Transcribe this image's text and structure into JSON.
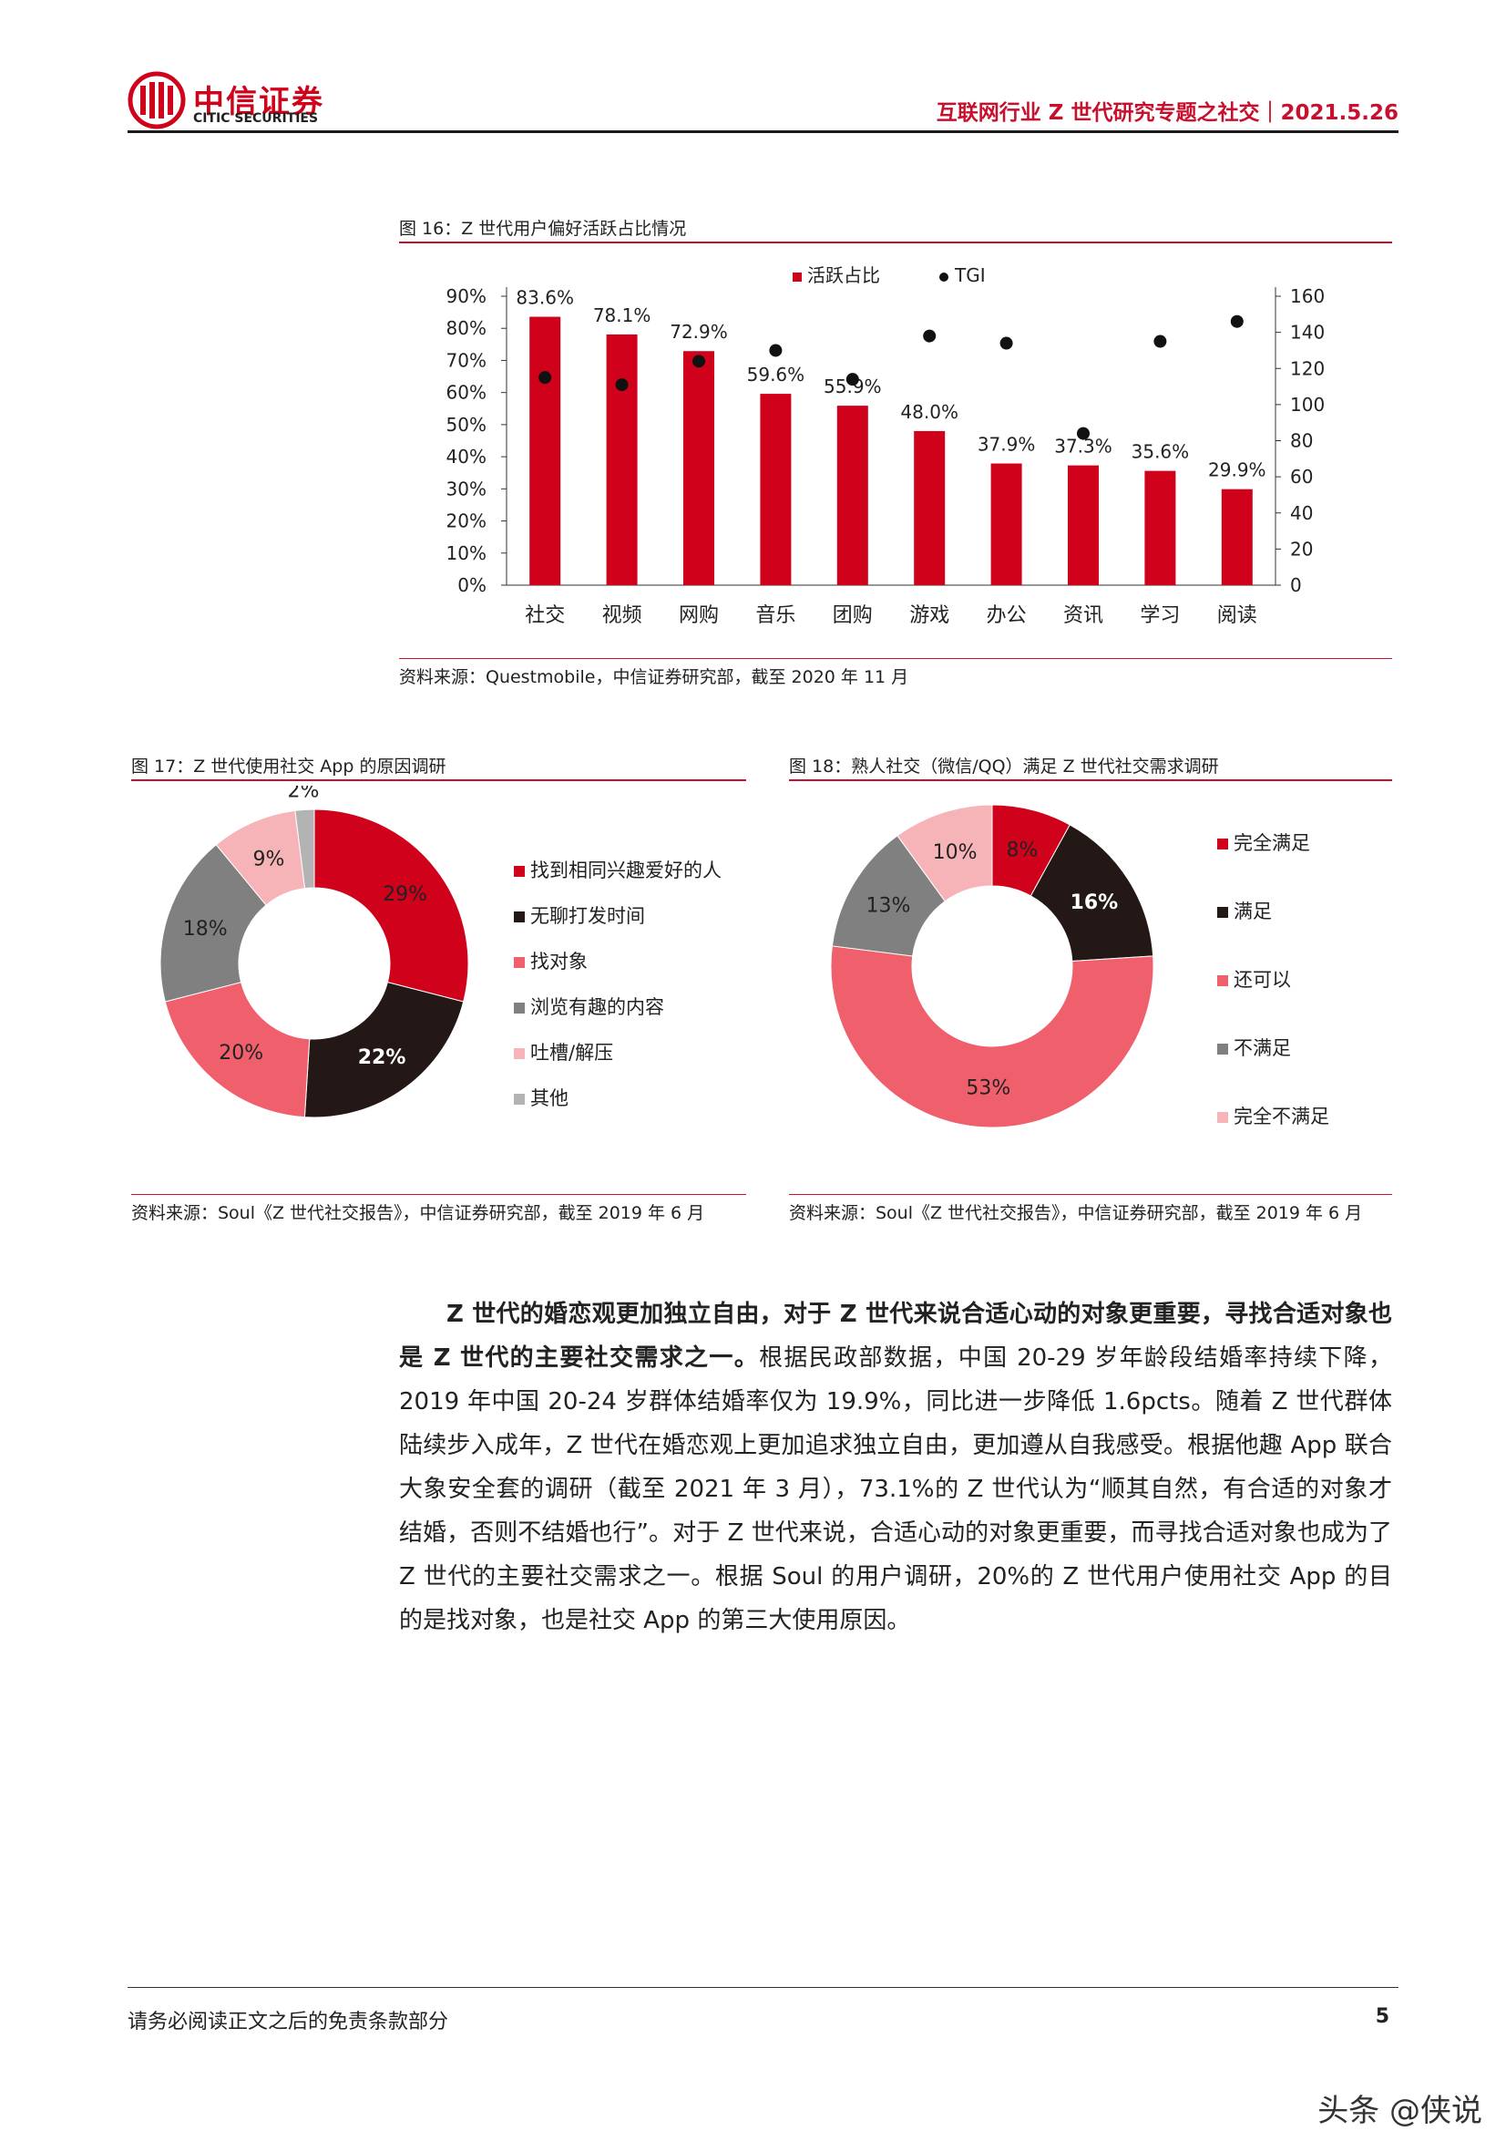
{
  "header": {
    "logo_cn": "中信证券",
    "logo_en": "CITIC SECURITIES",
    "title": "互联网行业 Z 世代研究专题之社交｜2021.5.26"
  },
  "colors": {
    "brand_red": "#c8102e",
    "bar_red": "#d0021b",
    "dark": "#231815",
    "pink": "#f0606c",
    "grey": "#808080",
    "light_pink": "#f7b4b8",
    "light_grey": "#b3b3b3"
  },
  "fig16": {
    "caption": "图 16：Z 世代用户偏好活跃占比情况",
    "source": "资料来源：Questmobile，中信证券研究部，截至 2020 年 11 月"
  },
  "fig17": {
    "caption": "图 17：Z 世代使用社交 App 的原因调研",
    "source": "资料来源：Soul《Z 世代社交报告》，中信证券研究部，截至 2019 年 6 月"
  },
  "fig18": {
    "caption": "图 18：熟人社交（微信/QQ）满足 Z 世代社交需求调研",
    "source": "资料来源：Soul《Z 世代社交报告》，中信证券研究部，截至 2019 年 6 月"
  },
  "chart_data": [
    {
      "type": "bar",
      "categories": [
        "社交",
        "视频",
        "网购",
        "音乐",
        "团购",
        "游戏",
        "办公",
        "资讯",
        "学习",
        "阅读"
      ],
      "series": [
        {
          "name": "活跃占比",
          "type": "bar",
          "values": [
            83.6,
            78.1,
            72.9,
            59.6,
            55.9,
            48.0,
            37.9,
            37.3,
            35.6,
            29.9
          ],
          "labels": [
            "83.6%",
            "78.1%",
            "72.9%",
            "59.6%",
            "55.9%",
            "48.0%",
            "37.9%",
            "37.3%",
            "35.6%",
            "29.9%"
          ]
        },
        {
          "name": "TGI",
          "type": "scatter",
          "axis": "right",
          "values": [
            115,
            111,
            124,
            130,
            114,
            138,
            134,
            84,
            135,
            146
          ]
        }
      ],
      "y_left": {
        "ticks": [
          "90%",
          "80%",
          "70%",
          "60%",
          "50%",
          "40%",
          "30%",
          "20%",
          "10%",
          "0%"
        ],
        "lim": [
          0,
          90
        ]
      },
      "y_right": {
        "ticks": [
          "160",
          "140",
          "120",
          "100",
          "80",
          "60",
          "40",
          "20",
          "0"
        ],
        "lim": [
          0,
          160
        ]
      },
      "legend_position": "top-center"
    },
    {
      "type": "pie",
      "donut": true,
      "slices": [
        {
          "label": "找到相同兴趣爱好的人",
          "value": 29,
          "text": "29%",
          "color": "#d0021b"
        },
        {
          "label": "无聊打发时间",
          "value": 22,
          "text": "22%",
          "color": "#231815"
        },
        {
          "label": "找对象",
          "value": 20,
          "text": "20%",
          "color": "#f0606c"
        },
        {
          "label": "浏览有趣的内容",
          "value": 18,
          "text": "18%",
          "color": "#808080"
        },
        {
          "label": "吐槽/解压",
          "value": 9,
          "text": "9%",
          "color": "#f7b4b8"
        },
        {
          "label": "其他",
          "value": 2,
          "text": "2%",
          "color": "#b3b3b3"
        }
      ],
      "legend_position": "right"
    },
    {
      "type": "pie",
      "donut": true,
      "slices": [
        {
          "label": "完全满足",
          "value": 8,
          "text": "8%",
          "color": "#d0021b"
        },
        {
          "label": "满足",
          "value": 16,
          "text": "16%",
          "color": "#231815"
        },
        {
          "label": "还可以",
          "value": 53,
          "text": "53%",
          "color": "#f0606c"
        },
        {
          "label": "不满足",
          "value": 13,
          "text": "13%",
          "color": "#808080"
        },
        {
          "label": "完全不满足",
          "value": 10,
          "text": "10%",
          "color": "#f7b4b8"
        }
      ],
      "legend_position": "right"
    }
  ],
  "body": {
    "bold_lead": "Z 世代的婚恋观更加独立自由，对于 Z 世代来说合适心动的对象更重要，寻找合适对象也是 Z 世代的主要社交需求之一。",
    "text": "根据民政部数据，中国 20-29 岁年龄段结婚率持续下降，2019 年中国 20-24 岁群体结婚率仅为 19.9%，同比进一步降低 1.6pcts。随着 Z 世代群体陆续步入成年，Z 世代在婚恋观上更加追求独立自由，更加遵从自我感受。根据他趣 App 联合大象安全套的调研（截至 2021 年 3 月），73.1%的 Z 世代认为“顺其自然，有合适的对象才结婚，否则不结婚也行”。对于 Z 世代来说，合适心动的对象更重要，而寻找合适对象也成为了 Z 世代的主要社交需求之一。根据 Soul 的用户调研，20%的 Z 世代用户使用社交 App 的目的是找对象，也是社交 App 的第三大使用原因。"
  },
  "footer": {
    "note": "请务必阅读正文之后的免责条款部分",
    "page": "5",
    "watermark": "头条 @侠说"
  }
}
